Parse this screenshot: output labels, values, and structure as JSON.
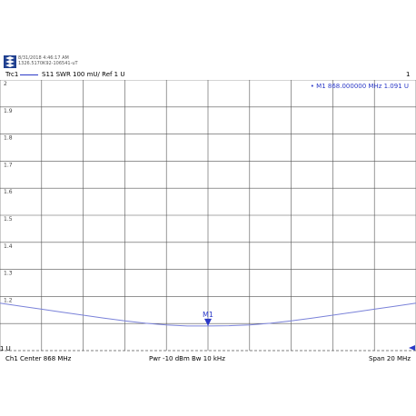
{
  "header": {
    "timestamp": "8/31/2018 4:46:17 AM",
    "instrument_id": "1326.5170K92-106541-uT"
  },
  "trace": {
    "name": "Trc1",
    "description": "S11  SWR  100 mU/ Ref 1 U",
    "index": "1"
  },
  "marker": {
    "readout": "• M1  868.000000  MHz   1.091  U",
    "label": "M1",
    "x_mhz": 868.0,
    "value_u": 1.091
  },
  "ref_label": "1 U",
  "footer": {
    "channel": "Ch1  Center  868 MHz",
    "power_bw": "Pwr  -10 dBm  Bw  10 kHz",
    "span": "Span  20 MHz"
  },
  "colors": {
    "trace": "#7a82d9",
    "marker": "#2b39c7",
    "grid": "#555555"
  },
  "chart_data": {
    "type": "line",
    "xlabel": "",
    "ylabel": "",
    "xlim": [
      858,
      878
    ],
    "ylim": [
      1.0,
      2.0
    ],
    "y_ticks": [
      "2",
      "1.9",
      "1.8",
      "1.7",
      "1.6",
      "1.5",
      "1.4",
      "1.3",
      "1.2"
    ],
    "grid": true,
    "series": [
      {
        "x": [
          858,
          859,
          860,
          861,
          862,
          863,
          864,
          865,
          866,
          867,
          868,
          869,
          870,
          871,
          872,
          873,
          874,
          875,
          876,
          877,
          878
        ],
        "values": [
          1.175,
          1.164,
          1.153,
          1.142,
          1.131,
          1.12,
          1.11,
          1.101,
          1.095,
          1.091,
          1.091,
          1.092,
          1.095,
          1.101,
          1.11,
          1.12,
          1.131,
          1.142,
          1.153,
          1.164,
          1.175
        ]
      }
    ]
  }
}
